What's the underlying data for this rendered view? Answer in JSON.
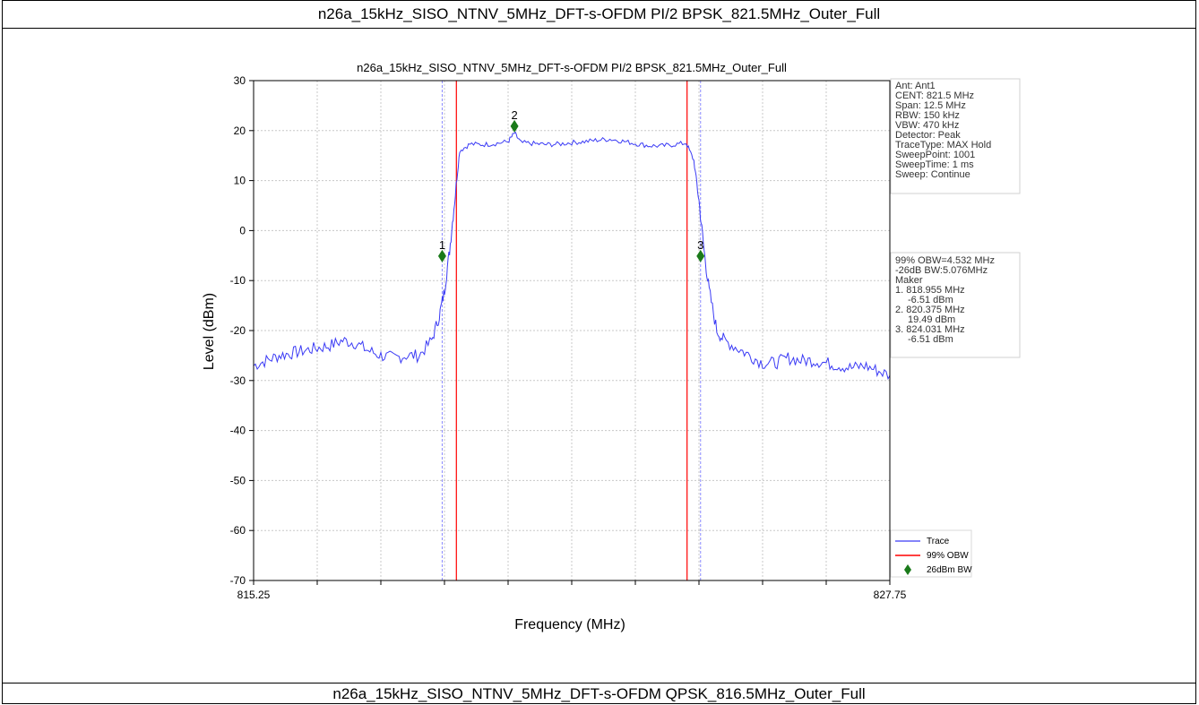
{
  "header_caption": "n26a_15kHz_SISO_NTNV_5MHz_DFT-s-OFDM PI/2 BPSK_821.5MHz_Outer_Full",
  "footer_caption": "n26a_15kHz_SISO_NTNV_5MHz_DFT-s-OFDM QPSK_816.5MHz_Outer_Full",
  "chart_data": {
    "type": "line",
    "title": "n26a_15kHz_SISO_NTNV_5MHz_DFT-s-OFDM PI/2 BPSK_821.5MHz_Outer_Full",
    "xlabel": "Frequency (MHz)",
    "ylabel": "Level (dBm)",
    "xlim": [
      815.25,
      827.75
    ],
    "ylim": [
      -70,
      30
    ],
    "x_tick_labels": [
      "815.25",
      "827.75"
    ],
    "y_ticks": [
      30,
      20,
      10,
      0,
      -10,
      -20,
      -30,
      -40,
      -50,
      -60,
      -70
    ],
    "grid": true,
    "colors": {
      "trace": "#3b3bf5",
      "obw": "#ff0000",
      "marker": "#1a7a1a",
      "marker_vline": "#8a8aff"
    },
    "series": [
      {
        "name": "Trace",
        "x": [
          815.25,
          815.5,
          815.75,
          816.0,
          816.25,
          816.5,
          816.75,
          817.0,
          817.25,
          817.5,
          817.75,
          818.0,
          818.25,
          818.5,
          818.75,
          818.9,
          819.0,
          819.1,
          819.2,
          819.3,
          819.5,
          819.75,
          820.0,
          820.25,
          820.375,
          820.5,
          820.75,
          821.0,
          821.25,
          821.5,
          821.75,
          822.0,
          822.25,
          822.5,
          822.75,
          823.0,
          823.25,
          823.5,
          823.75,
          823.9,
          824.0,
          824.1,
          824.2,
          824.35,
          824.5,
          824.75,
          825.0,
          825.25,
          825.5,
          825.75,
          826.0,
          826.25,
          826.5,
          826.75,
          827.0,
          827.25,
          827.5,
          827.75
        ],
        "y": [
          -27,
          -26,
          -25,
          -24.5,
          -24,
          -23.5,
          -23,
          -22,
          -22.5,
          -24,
          -25,
          -25.5,
          -25,
          -25,
          -22,
          -17,
          -12,
          -4,
          6,
          16,
          17.3,
          17.2,
          17.4,
          17.8,
          19.5,
          17.6,
          17.4,
          17.2,
          17.3,
          17.6,
          17.8,
          18.1,
          18.3,
          17.9,
          17.4,
          17.0,
          16.9,
          17.2,
          17.5,
          14,
          6,
          -4,
          -12,
          -20,
          -22,
          -23.5,
          -25,
          -26.5,
          -26.5,
          -25.5,
          -26,
          -26,
          -26.5,
          -27,
          -27.5,
          -27,
          -28,
          -29
        ]
      }
    ],
    "markers": [
      {
        "label": "1",
        "x": 818.955,
        "y": -6.51
      },
      {
        "label": "2",
        "x": 820.375,
        "y": 19.49
      },
      {
        "label": "3",
        "x": 824.031,
        "y": -6.51
      }
    ],
    "obw_lines": [
      819.234,
      823.766
    ],
    "info_box": [
      "Ant: Ant1",
      "CENT: 821.5 MHz",
      "Span: 12.5 MHz",
      "RBW: 150 kHz",
      "VBW: 470 kHz",
      "Detector: Peak",
      "TraceType: MAX Hold",
      "SweepPoint: 1001",
      "SweepTime: 1 ms",
      "Sweep: Continue"
    ],
    "result_box": [
      "99% OBW=4.532 MHz",
      "-26dB BW:5.076MHz",
      "Maker",
      "1. 818.955 MHz",
      "-6.51 dBm",
      "2. 820.375 MHz",
      "19.49 dBm",
      "3. 824.031 MHz",
      "-6.51 dBm"
    ],
    "legend": {
      "position": "bottom-right",
      "items": [
        "Trace",
        "99% OBW",
        "26dBm BW"
      ]
    }
  }
}
